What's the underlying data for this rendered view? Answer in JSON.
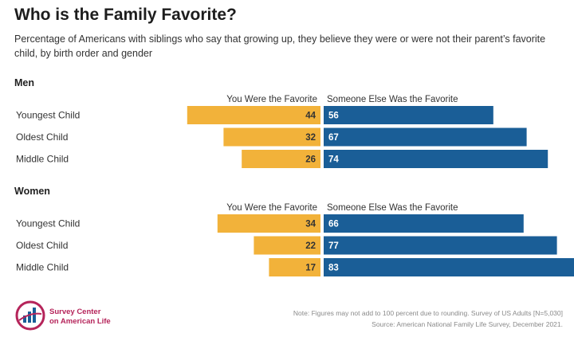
{
  "chart_data": {
    "type": "bar",
    "orientation": "diverging-horizontal",
    "title": "Who is the Family Favorite?",
    "subtitle": "Percentage of Americans with siblings who say that growing up, they believe they were or were not their parent’s favorite child, by birth order and gender",
    "colors": {
      "favorite": "#F2B23A",
      "someone_else": "#1A5E97"
    },
    "xlim": [
      0,
      100
    ],
    "groups": [
      {
        "name": "Men",
        "categories": [
          "Youngest Child",
          "Oldest Child",
          "Middle Child"
        ],
        "series": [
          {
            "name": "You Were the Favorite",
            "values": [
              44,
              32,
              26
            ]
          },
          {
            "name": "Someone Else Was the Favorite",
            "values": [
              56,
              67,
              74
            ]
          }
        ]
      },
      {
        "name": "Women",
        "categories": [
          "Youngest Child",
          "Oldest Child",
          "Middle Child"
        ],
        "series": [
          {
            "name": "You Were the Favorite",
            "values": [
              34,
              22,
              17
            ]
          },
          {
            "name": "Someone Else Was the Favorite",
            "values": [
              66,
              77,
              83
            ]
          }
        ]
      }
    ]
  },
  "logo": {
    "line1": "Survey Center",
    "line2": "on American Life"
  },
  "note": {
    "line1": "Note: Figures may not add to 100 percent due to rounding. Survey of US Adults [N=5,030]",
    "line2": "Source: American National Family Life Survey, December 2021."
  }
}
